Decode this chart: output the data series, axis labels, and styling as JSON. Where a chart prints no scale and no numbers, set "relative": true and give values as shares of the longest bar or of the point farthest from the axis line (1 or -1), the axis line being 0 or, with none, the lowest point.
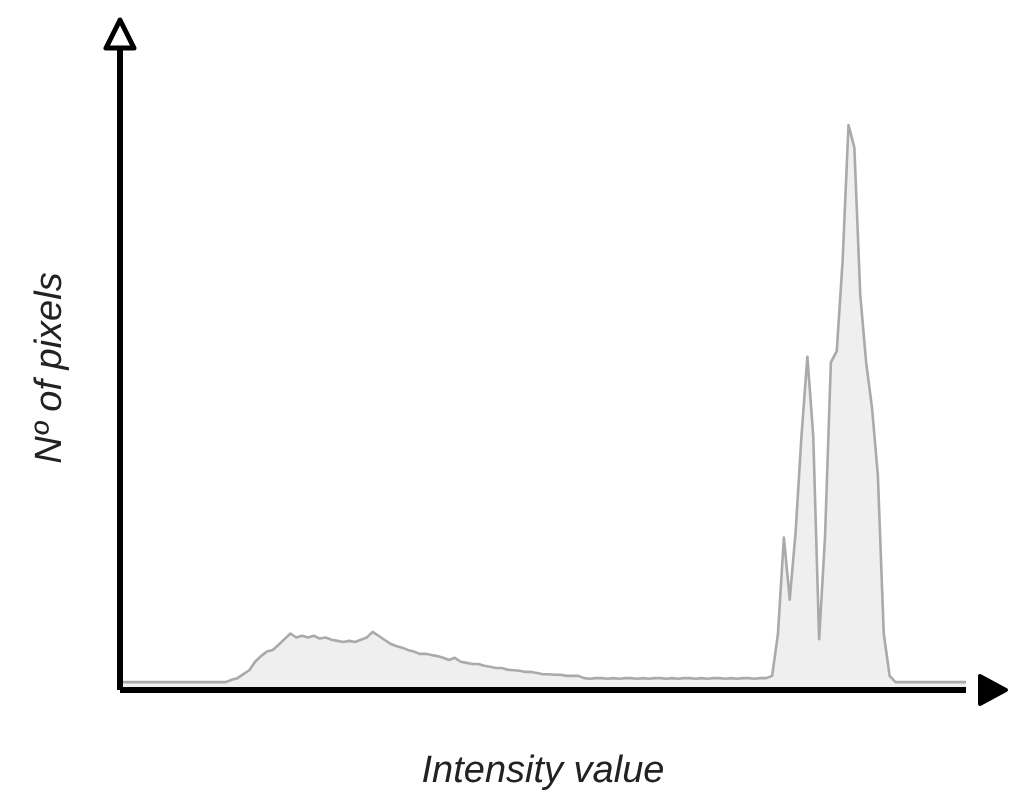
{
  "chart_data": {
    "type": "area",
    "relative": true,
    "xlabel": "Intensity value",
    "ylabel": "Nº of pixels",
    "grid": false,
    "legend": false,
    "categories": [
      null,
      null,
      null,
      null,
      null,
      null,
      null,
      null,
      null,
      null,
      null,
      null,
      null,
      null,
      null,
      null,
      null,
      null,
      null,
      null,
      null,
      null,
      null,
      null,
      null,
      null,
      null,
      null,
      null,
      null,
      null,
      null,
      null,
      null,
      null,
      null,
      null,
      null,
      null,
      null,
      null,
      null,
      null,
      null,
      null,
      null,
      null,
      null,
      null,
      null,
      null,
      null,
      null,
      null,
      null,
      null,
      null,
      null,
      null,
      null,
      null,
      null,
      null,
      null,
      null,
      null,
      null,
      null,
      null,
      null,
      null,
      null,
      null,
      null,
      null,
      null,
      null,
      null,
      null,
      null,
      null,
      null,
      null,
      null,
      null,
      null,
      null,
      null,
      null,
      null,
      null,
      null,
      null,
      null,
      null,
      null,
      null,
      null,
      null,
      null,
      null,
      null,
      null,
      null,
      null,
      null,
      null,
      null,
      null,
      null,
      null,
      null,
      null,
      null,
      null,
      null,
      null,
      null,
      null,
      null,
      null,
      null,
      null,
      null,
      null,
      null,
      null,
      null,
      null,
      null,
      null,
      null,
      null,
      null,
      null,
      null,
      null,
      null,
      null,
      null,
      null,
      null,
      null,
      null,
      null
    ],
    "series": [
      {
        "color": "#aaaaaa",
        "values": [
          0.014,
          0.014,
          0.014,
          0.014,
          0.014,
          0.014,
          0.014,
          0.014,
          0.014,
          0.014,
          0.014,
          0.014,
          0.014,
          0.014,
          0.014,
          0.014,
          0.014,
          0.014,
          0.014,
          0.018,
          0.021,
          0.028,
          0.035,
          0.05,
          0.06,
          0.068,
          0.071,
          0.08,
          0.09,
          0.1,
          0.093,
          0.096,
          0.093,
          0.096,
          0.091,
          0.093,
          0.089,
          0.087,
          0.085,
          0.087,
          0.085,
          0.089,
          0.093,
          0.103,
          0.096,
          0.089,
          0.082,
          0.078,
          0.075,
          0.071,
          0.068,
          0.064,
          0.064,
          0.062,
          0.06,
          0.057,
          0.053,
          0.057,
          0.05,
          0.048,
          0.046,
          0.046,
          0.043,
          0.041,
          0.039,
          0.039,
          0.036,
          0.035,
          0.034,
          0.032,
          0.032,
          0.03,
          0.028,
          0.028,
          0.027,
          0.027,
          0.025,
          0.025,
          0.025,
          0.021,
          0.02,
          0.021,
          0.021,
          0.02,
          0.021,
          0.02,
          0.021,
          0.021,
          0.02,
          0.021,
          0.02,
          0.021,
          0.021,
          0.02,
          0.021,
          0.02,
          0.021,
          0.021,
          0.02,
          0.021,
          0.02,
          0.021,
          0.021,
          0.02,
          0.021,
          0.02,
          0.021,
          0.021,
          0.02,
          0.021,
          0.021,
          0.025,
          0.1,
          0.27,
          0.16,
          0.28,
          0.45,
          0.59,
          0.45,
          0.09,
          0.27,
          0.58,
          0.6,
          0.76,
          1,
          0.96,
          0.7,
          0.58,
          0.5,
          0.38,
          0.1,
          0.025,
          0.014,
          0.014,
          0.014,
          0.014,
          0.014,
          0.014,
          0.014,
          0.014,
          0.014,
          0.014,
          0.014,
          0.014,
          0.014
        ]
      }
    ]
  }
}
